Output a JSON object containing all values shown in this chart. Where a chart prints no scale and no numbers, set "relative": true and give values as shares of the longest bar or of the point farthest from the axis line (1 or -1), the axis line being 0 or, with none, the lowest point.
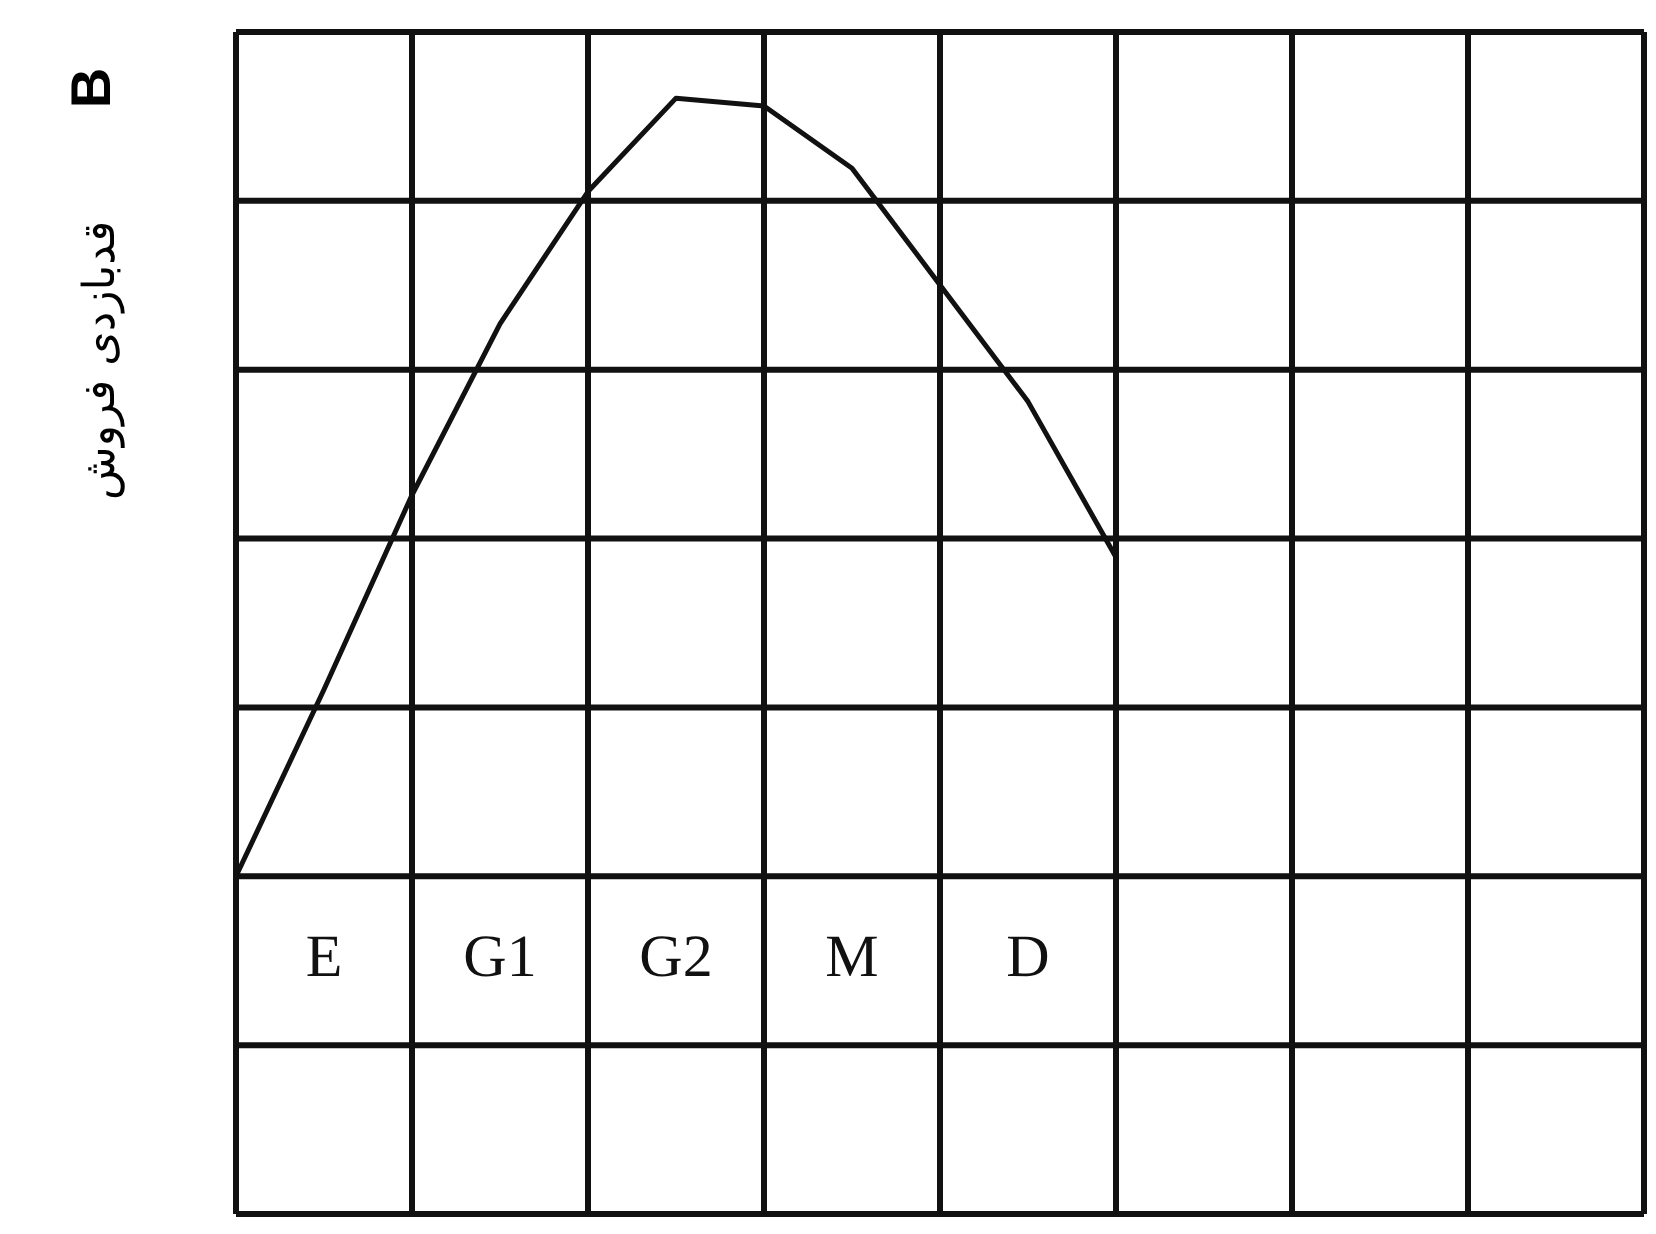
{
  "chart_data": {
    "type": "line",
    "relative": true,
    "ylabel": "قدبازدی فروش",
    "annotations": [
      "B"
    ],
    "categories": [
      null,
      "E",
      null,
      "G1",
      null,
      "G2",
      null,
      "M",
      null,
      "D",
      null,
      null,
      null,
      null,
      null,
      null,
      null
    ],
    "grid": true,
    "marker": "none",
    "series": [
      {
        "color": "#111111",
        "values": [
          0,
          0.24,
          0.49,
          0.71,
          0.88,
          1,
          0.99,
          0.91,
          0.76,
          0.61,
          0.41,
          null,
          null,
          null,
          null,
          null,
          null
        ]
      }
    ]
  }
}
